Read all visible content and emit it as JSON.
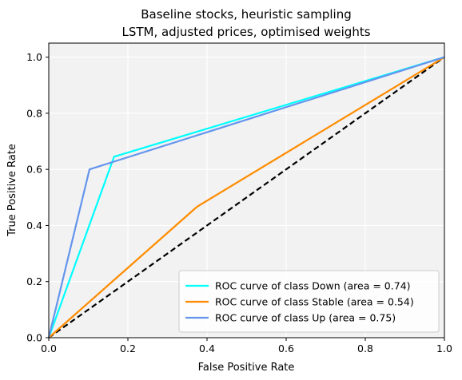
{
  "chart_data": {
    "type": "line",
    "title": "Baseline stocks, heuristic sampling",
    "subtitle": "LSTM, adjusted prices, optimised weights",
    "xlabel": "False Positive Rate",
    "ylabel": "True Positive Rate",
    "xlim": [
      0.0,
      1.0
    ],
    "ylim": [
      0.0,
      1.05
    ],
    "xticks": [
      "0.0",
      "0.2",
      "0.4",
      "0.6",
      "0.8",
      "1.0"
    ],
    "yticks": [
      "0.0",
      "0.2",
      "0.4",
      "0.6",
      "0.8",
      "1.0"
    ],
    "grid": true,
    "legend_position": "lower-right",
    "series": [
      {
        "name": "ROC curve of class Down (area = 0.74)",
        "color": "#00ffff",
        "x": [
          0.0,
          0.165,
          1.0
        ],
        "y": [
          0.0,
          0.645,
          1.0
        ]
      },
      {
        "name": "ROC curve of class Stable (area = 0.54)",
        "color": "#ff8c00",
        "x": [
          0.0,
          0.375,
          1.0
        ],
        "y": [
          0.0,
          0.467,
          1.0
        ]
      },
      {
        "name": "ROC curve of class Up (area = 0.75)",
        "color": "#6495ed",
        "x": [
          0.0,
          0.103,
          1.0
        ],
        "y": [
          0.0,
          0.6,
          1.0
        ]
      }
    ],
    "reference_line": {
      "style": "dashed",
      "color": "#000000",
      "x": [
        0.0,
        1.0
      ],
      "y": [
        0.0,
        1.0
      ]
    }
  }
}
